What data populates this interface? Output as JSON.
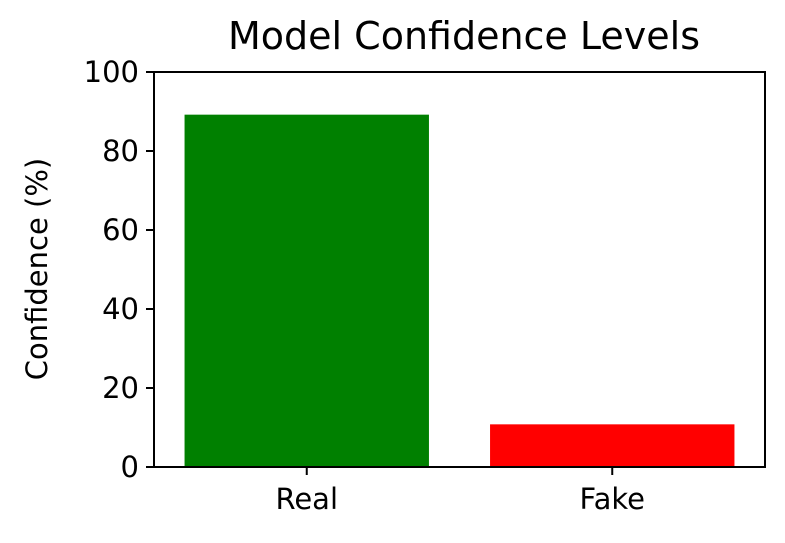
{
  "chart_data": {
    "type": "bar",
    "title": "Model Confidence Levels",
    "xlabel": "",
    "ylabel": "Confidence (%)",
    "categories": [
      "Real",
      "Fake"
    ],
    "values": [
      89.2,
      10.8
    ],
    "colors": [
      "#008000",
      "#ff0000"
    ],
    "ylim": [
      0,
      100
    ],
    "yticks": [
      "0",
      "20",
      "40",
      "60",
      "80",
      "100"
    ],
    "grid": false,
    "legend": "none"
  }
}
